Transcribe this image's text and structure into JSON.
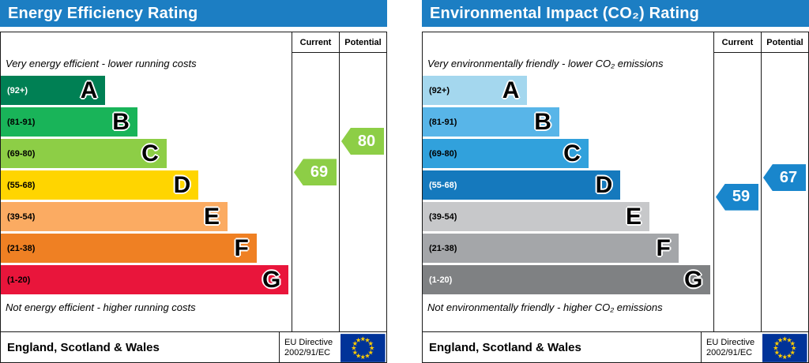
{
  "chart_data": [
    {
      "type": "bar",
      "title": "Energy Efficiency Rating",
      "header_color": "#1c7ec3",
      "columns": [
        "Current",
        "Potential"
      ],
      "top_note": "Very energy efficient - lower running costs",
      "bottom_note": "Not energy efficient - higher running costs",
      "bands": [
        {
          "range": "(92+)",
          "letter": "A",
          "min": 92,
          "max": 100,
          "color": "#008054",
          "label_color": "#ffffff",
          "width_pct": 36
        },
        {
          "range": "(81-91)",
          "letter": "B",
          "min": 81,
          "max": 91,
          "color": "#19b459",
          "label_color": "#000000",
          "width_pct": 47
        },
        {
          "range": "(69-80)",
          "letter": "C",
          "min": 69,
          "max": 80,
          "color": "#8dce46",
          "label_color": "#000000",
          "width_pct": 57
        },
        {
          "range": "(55-68)",
          "letter": "D",
          "min": 55,
          "max": 68,
          "color": "#ffd500",
          "label_color": "#000000",
          "width_pct": 68
        },
        {
          "range": "(39-54)",
          "letter": "E",
          "min": 39,
          "max": 54,
          "color": "#fbab62",
          "label_color": "#000000",
          "width_pct": 78
        },
        {
          "range": "(21-38)",
          "letter": "F",
          "min": 21,
          "max": 38,
          "color": "#ef8023",
          "label_color": "#000000",
          "width_pct": 88
        },
        {
          "range": "(1-20)",
          "letter": "G",
          "min": 1,
          "max": 20,
          "color": "#e9153b",
          "label_color": "#000000",
          "width_pct": 99
        }
      ],
      "current": 69,
      "potential": 80,
      "marker_color": "#8dce46",
      "footer": {
        "region": "England, Scotland & Wales",
        "directive_line1": "EU Directive",
        "directive_line2": "2002/91/EC"
      }
    },
    {
      "type": "bar",
      "title": "Environmental Impact (CO₂) Rating",
      "header_color": "#1c7ec3",
      "columns": [
        "Current",
        "Potential"
      ],
      "top_note": "Very environmentally friendly - lower CO₂ emissions",
      "bottom_note": "Not environmentally friendly - higher CO₂ emissions",
      "bands": [
        {
          "range": "(92+)",
          "letter": "A",
          "min": 92,
          "max": 100,
          "color": "#a4d7ee",
          "label_color": "#000000",
          "width_pct": 36
        },
        {
          "range": "(81-91)",
          "letter": "B",
          "min": 81,
          "max": 91,
          "color": "#58b5e8",
          "label_color": "#000000",
          "width_pct": 47
        },
        {
          "range": "(69-80)",
          "letter": "C",
          "min": 69,
          "max": 80,
          "color": "#31a1dc",
          "label_color": "#000000",
          "width_pct": 57
        },
        {
          "range": "(55-68)",
          "letter": "D",
          "min": 55,
          "max": 68,
          "color": "#1579bd",
          "label_color": "#ffffff",
          "width_pct": 68
        },
        {
          "range": "(39-54)",
          "letter": "E",
          "min": 39,
          "max": 54,
          "color": "#c7c8ca",
          "label_color": "#000000",
          "width_pct": 78
        },
        {
          "range": "(21-38)",
          "letter": "F",
          "min": 21,
          "max": 38,
          "color": "#a4a6a9",
          "label_color": "#000000",
          "width_pct": 88
        },
        {
          "range": "(1-20)",
          "letter": "G",
          "min": 1,
          "max": 20,
          "color": "#7f8183",
          "label_color": "#ffffff",
          "width_pct": 99
        }
      ],
      "current": 59,
      "potential": 67,
      "marker_color": "#1986cc",
      "footer": {
        "region": "England, Scotland & Wales",
        "directive_line1": "EU Directive",
        "directive_line2": "2002/91/EC"
      }
    }
  ]
}
